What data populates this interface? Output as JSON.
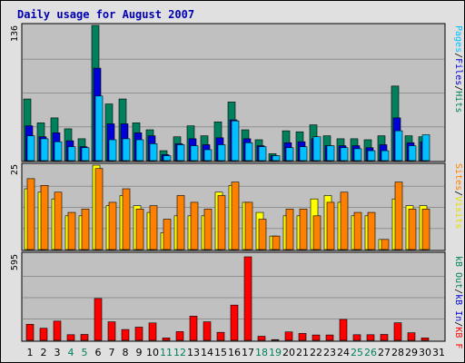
{
  "header": {
    "title": "Daily usage for August 2007"
  },
  "colors": {
    "hits": "#00805c",
    "files": "#0000d8",
    "pages": "#00c0ff",
    "visits": "#ffff00",
    "sites": "#ff8000",
    "kb": "#ff0000",
    "kb_out": "#00805c",
    "kb_in": "#0000d8",
    "weekday_label": "#000000",
    "weekend_label": "#00805c"
  },
  "chart_data": [
    {
      "type": "bar",
      "panel": "top",
      "ymax_label": "136",
      "legend": [
        "Pages",
        "/",
        "Files",
        "/",
        "Hits"
      ],
      "categories": [
        "1",
        "2",
        "3",
        "4",
        "5",
        "6",
        "7",
        "8",
        "9",
        "10",
        "11",
        "12",
        "13",
        "14",
        "15",
        "16",
        "17",
        "18",
        "19",
        "20",
        "21",
        "22",
        "23",
        "24",
        "25",
        "26",
        "27",
        "28",
        "29",
        "30",
        "31"
      ],
      "weekend_days": [
        "4",
        "5",
        "11",
        "12",
        "18",
        "19",
        "25",
        "26"
      ],
      "series": [
        {
          "name": "Hits",
          "values": [
            62,
            38,
            43,
            32,
            22,
            136,
            57,
            62,
            38,
            31,
            10,
            24,
            35,
            25,
            39,
            59,
            31,
            21,
            7,
            30,
            29,
            36,
            25,
            22,
            22,
            21,
            25,
            75,
            25,
            24,
            0
          ]
        },
        {
          "name": "Files",
          "values": [
            35,
            24,
            28,
            20,
            14,
            93,
            37,
            37,
            28,
            25,
            6,
            17,
            22,
            16,
            23,
            41,
            22,
            15,
            5,
            18,
            19,
            22,
            15,
            15,
            15,
            13,
            16,
            43,
            18,
            19,
            0
          ]
        },
        {
          "name": "Pages",
          "values": [
            25,
            22,
            19,
            14,
            13,
            65,
            21,
            22,
            21,
            17,
            5,
            16,
            15,
            11,
            16,
            40,
            18,
            14,
            5,
            13,
            14,
            24,
            15,
            13,
            12,
            10,
            10,
            30,
            15,
            26,
            0
          ]
        }
      ]
    },
    {
      "type": "bar",
      "panel": "middle",
      "ymax_label": "25",
      "legend": [
        "Sites",
        "/",
        "Visits"
      ],
      "categories": [
        "1",
        "2",
        "3",
        "4",
        "5",
        "6",
        "7",
        "8",
        "9",
        "10",
        "11",
        "12",
        "13",
        "14",
        "15",
        "16",
        "17",
        "18",
        "19",
        "20",
        "21",
        "22",
        "23",
        "24",
        "25",
        "26",
        "27",
        "28",
        "29",
        "30",
        "31"
      ],
      "series": [
        {
          "name": "Visits",
          "values": [
            18,
            17,
            15,
            10,
            10,
            25,
            13,
            16,
            13,
            11,
            5,
            10,
            10,
            10,
            17,
            19,
            14,
            11,
            4,
            10,
            10,
            15,
            16,
            14,
            10,
            10,
            3,
            15,
            13,
            13,
            0
          ]
        },
        {
          "name": "Sites",
          "values": [
            21,
            19,
            17,
            11,
            12,
            24,
            14,
            18,
            12,
            13,
            9,
            16,
            14,
            12,
            16,
            20,
            14,
            9,
            4,
            12,
            12,
            10,
            14,
            17,
            11,
            11,
            3,
            20,
            12,
            12,
            0
          ]
        }
      ]
    },
    {
      "type": "bar",
      "panel": "bottom",
      "ymax_label": "595",
      "legend": [
        "KB F",
        "/",
        "kB In",
        "/",
        "kB Out"
      ],
      "categories": [
        "1",
        "2",
        "3",
        "4",
        "5",
        "6",
        "7",
        "8",
        "9",
        "10",
        "11",
        "12",
        "13",
        "14",
        "15",
        "16",
        "17",
        "18",
        "19",
        "20",
        "21",
        "22",
        "23",
        "24",
        "25",
        "26",
        "27",
        "28",
        "29",
        "30",
        "31"
      ],
      "series": [
        {
          "name": "KB F",
          "values": [
            114,
            86,
            137,
            40,
            42,
            298,
            132,
            77,
            94,
            124,
            17,
            62,
            172,
            132,
            57,
            251,
            595,
            29,
            5,
            60,
            49,
            38,
            38,
            149,
            40,
            40,
            42,
            125,
            54,
            17,
            0
          ]
        }
      ]
    }
  ]
}
